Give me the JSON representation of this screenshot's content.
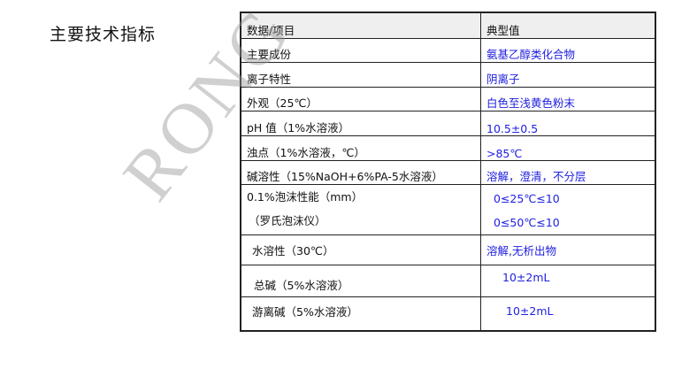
{
  "title": "主要技术指标",
  "watermark": "RONG",
  "table": {
    "headers": [
      "数据/项目",
      "典型值"
    ],
    "rows": [
      {
        "item": "主要成份",
        "value": "氨基乙醇类化合物"
      },
      {
        "item": "离子特性",
        "value": "阴离子"
      },
      {
        "item": "外观（25℃）",
        "value": "白色至浅黄色粉末"
      },
      {
        "item": "pH 值（1%水溶液）",
        "value": "10.5±0.5"
      },
      {
        "item": "浊点（1%水溶液，℃）",
        "value": ">85℃"
      },
      {
        "item": "碱溶性（15%NaOH+6%PA-5水溶液）",
        "value": "溶解，澄清，不分层"
      },
      {
        "item": "0.1%泡沫性能（mm）",
        "item2": "（罗氏泡沫仪）",
        "value": "0≤25℃≤10",
        "value2": "0≤50℃≤10"
      },
      {
        "item": "水溶性（30℃）",
        "value": "溶解,无析出物"
      },
      {
        "item": "总碱（5%水溶液）",
        "value": "10±2mL"
      },
      {
        "item": "游离碱（5%水溶液）",
        "value": "10±2mL"
      }
    ]
  }
}
